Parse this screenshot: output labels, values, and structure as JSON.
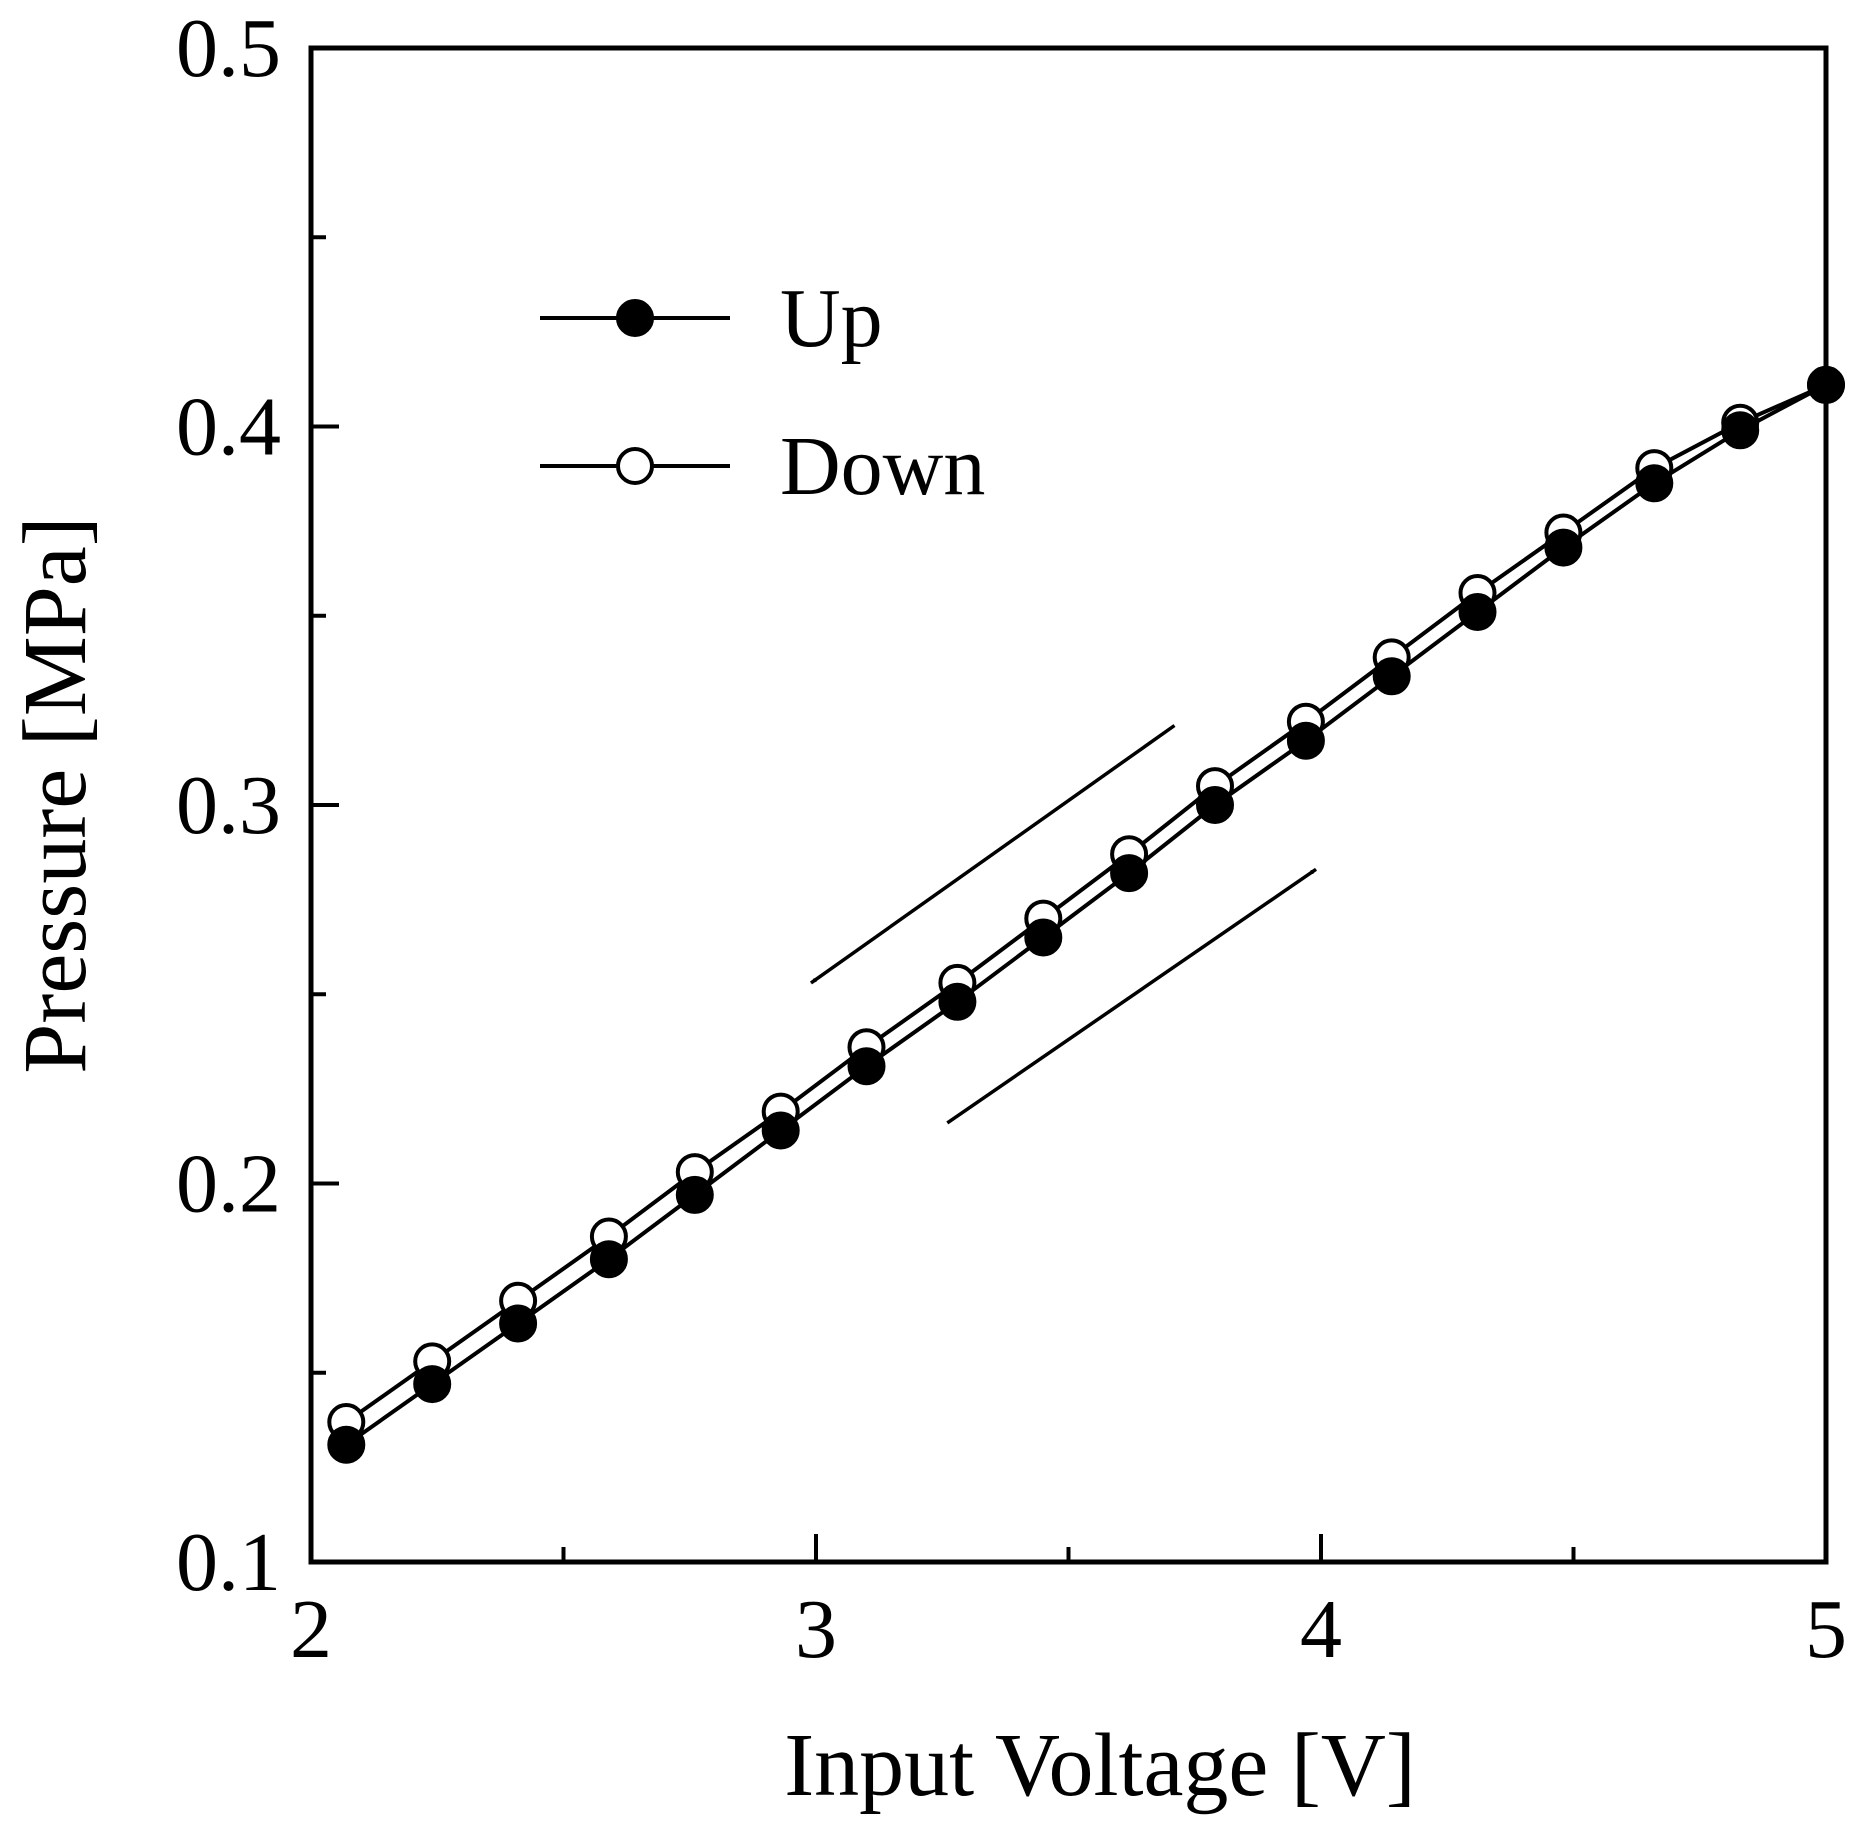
{
  "chart_data": {
    "type": "line",
    "title": "",
    "xlabel": "Input Voltage [V]",
    "ylabel": "Pressure [MPa]",
    "xlim": [
      2,
      5
    ],
    "ylim": [
      0.1,
      0.5
    ],
    "xticks": [
      2,
      3,
      4,
      5
    ],
    "xtick_labels": [
      "2",
      "3",
      "4",
      "5"
    ],
    "yticks": [
      0.1,
      0.2,
      0.3,
      0.4,
      0.5
    ],
    "ytick_labels": [
      "0.1",
      "0.2",
      "0.3",
      "0.4",
      "0.5"
    ],
    "x_minor_ticks": [
      2.5,
      3.5,
      4.5
    ],
    "y_minor_ticks": [
      0.15,
      0.25,
      0.35,
      0.45
    ],
    "grid": false,
    "legend_position": "top-left",
    "series": [
      {
        "name": "Up",
        "marker": "filled-circle",
        "x": [
          2.07,
          2.24,
          2.41,
          2.59,
          2.76,
          2.93,
          3.1,
          3.28,
          3.45,
          3.62,
          3.79,
          3.97,
          4.14,
          4.31,
          4.48,
          4.66,
          4.83,
          5.0
        ],
        "y": [
          0.131,
          0.147,
          0.163,
          0.18,
          0.197,
          0.214,
          0.231,
          0.248,
          0.265,
          0.282,
          0.3,
          0.317,
          0.334,
          0.351,
          0.368,
          0.385,
          0.399,
          0.411
        ]
      },
      {
        "name": "Down",
        "marker": "open-circle",
        "x": [
          2.07,
          2.24,
          2.41,
          2.59,
          2.76,
          2.93,
          3.1,
          3.28,
          3.45,
          3.62,
          3.79,
          3.97,
          4.14,
          4.31,
          4.48,
          4.66,
          4.83,
          5.0
        ],
        "y": [
          0.137,
          0.153,
          0.169,
          0.186,
          0.203,
          0.219,
          0.236,
          0.253,
          0.27,
          0.287,
          0.305,
          0.322,
          0.339,
          0.356,
          0.372,
          0.389,
          0.401,
          0.411
        ]
      }
    ],
    "annotations": [
      {
        "name": "down-arrow",
        "direction": "decreasing",
        "from": [
          3.71,
          0.321
        ],
        "to": [
          2.99,
          0.253
        ]
      },
      {
        "name": "up-arrow",
        "direction": "increasing",
        "from": [
          3.26,
          0.216
        ],
        "to": [
          3.99,
          0.283
        ]
      }
    ]
  }
}
